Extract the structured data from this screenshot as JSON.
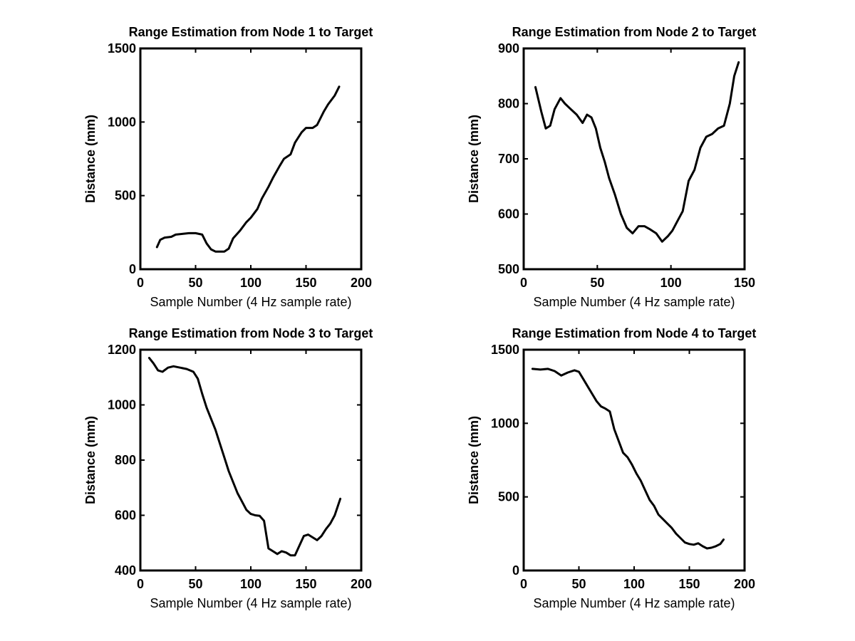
{
  "chart_data": [
    {
      "type": "line",
      "title": "Range Estimation from Node 1 to Target",
      "xlabel": "Sample Number (4 Hz sample rate)",
      "ylabel": "Distance (mm)",
      "xlim": [
        0,
        200
      ],
      "ylim": [
        0,
        1500
      ],
      "xticks": [
        0,
        50,
        100,
        150,
        200
      ],
      "yticks": [
        0,
        500,
        1000,
        1500
      ],
      "grid": false,
      "series": [
        {
          "x": [
            15,
            18,
            22,
            28,
            32,
            38,
            44,
            50,
            56,
            60,
            64,
            68,
            72,
            76,
            80,
            84,
            90,
            96,
            100,
            106,
            110,
            116,
            120,
            126,
            130,
            136,
            140,
            146,
            150,
            156,
            160,
            166,
            170,
            176,
            180
          ],
          "y": [
            150,
            200,
            215,
            220,
            235,
            240,
            245,
            245,
            235,
            175,
            135,
            120,
            120,
            120,
            140,
            210,
            260,
            320,
            350,
            410,
            480,
            560,
            620,
            700,
            750,
            780,
            860,
            930,
            960,
            960,
            980,
            1070,
            1120,
            1180,
            1240
          ]
        }
      ]
    },
    {
      "type": "line",
      "title": "Range Estimation from Node 2 to Target",
      "xlabel": "Sample Number (4 Hz sample rate)",
      "ylabel": "Distance (mm)",
      "xlim": [
        0,
        150
      ],
      "ylim": [
        500,
        900
      ],
      "xticks": [
        0,
        50,
        100,
        150
      ],
      "yticks": [
        500,
        600,
        700,
        800,
        900
      ],
      "grid": false,
      "series": [
        {
          "x": [
            8,
            12,
            15,
            18,
            21,
            25,
            28,
            32,
            36,
            40,
            43,
            46,
            49,
            52,
            55,
            58,
            62,
            66,
            70,
            74,
            78,
            82,
            86,
            90,
            94,
            98,
            101,
            104,
            108,
            112,
            116,
            120,
            124,
            128,
            132,
            136,
            140,
            143,
            146
          ],
          "y": [
            830,
            785,
            755,
            760,
            790,
            810,
            800,
            790,
            780,
            765,
            780,
            775,
            755,
            720,
            695,
            665,
            635,
            600,
            575,
            565,
            578,
            578,
            572,
            565,
            550,
            560,
            570,
            585,
            605,
            660,
            680,
            720,
            740,
            745,
            755,
            760,
            800,
            850,
            875
          ]
        }
      ]
    },
    {
      "type": "line",
      "title": "Range Estimation from Node 3 to Target",
      "xlabel": "Sample Number (4 Hz sample rate)",
      "ylabel": "Distance (mm)",
      "xlim": [
        0,
        200
      ],
      "ylim": [
        400,
        1200
      ],
      "xticks": [
        0,
        50,
        100,
        150,
        200
      ],
      "yticks": [
        400,
        600,
        800,
        1000,
        1200
      ],
      "grid": false,
      "series": [
        {
          "x": [
            8,
            12,
            16,
            20,
            25,
            30,
            36,
            42,
            48,
            52,
            56,
            60,
            64,
            68,
            72,
            76,
            80,
            84,
            88,
            92,
            96,
            100,
            104,
            108,
            112,
            116,
            120,
            124,
            128,
            132,
            136,
            140,
            144,
            148,
            152,
            156,
            160,
            164,
            168,
            172,
            176,
            181
          ],
          "y": [
            1170,
            1150,
            1125,
            1120,
            1135,
            1140,
            1135,
            1130,
            1120,
            1095,
            1040,
            990,
            950,
            910,
            860,
            810,
            760,
            720,
            680,
            650,
            620,
            605,
            600,
            598,
            580,
            480,
            470,
            460,
            470,
            465,
            455,
            455,
            490,
            525,
            530,
            520,
            510,
            525,
            550,
            570,
            600,
            660
          ]
        }
      ]
    },
    {
      "type": "line",
      "title": "Range Estimation from Node 4 to Target",
      "xlabel": "Sample Number (4 Hz sample rate)",
      "ylabel": "Distance (mm)",
      "xlim": [
        0,
        200
      ],
      "ylim": [
        0,
        1500
      ],
      "xticks": [
        0,
        50,
        100,
        150,
        200
      ],
      "yticks": [
        0,
        500,
        1000,
        1500
      ],
      "grid": false,
      "series": [
        {
          "x": [
            8,
            15,
            22,
            28,
            34,
            40,
            46,
            50,
            54,
            58,
            62,
            66,
            70,
            74,
            78,
            82,
            86,
            90,
            94,
            98,
            102,
            106,
            110,
            114,
            118,
            122,
            126,
            130,
            134,
            138,
            142,
            146,
            150,
            154,
            158,
            162,
            166,
            170,
            174,
            178,
            181
          ],
          "y": [
            1370,
            1365,
            1370,
            1355,
            1325,
            1345,
            1360,
            1350,
            1300,
            1250,
            1200,
            1150,
            1115,
            1100,
            1080,
            960,
            880,
            800,
            770,
            720,
            660,
            610,
            545,
            480,
            440,
            380,
            350,
            320,
            290,
            250,
            220,
            190,
            180,
            175,
            185,
            165,
            150,
            155,
            165,
            180,
            210
          ]
        }
      ]
    }
  ]
}
